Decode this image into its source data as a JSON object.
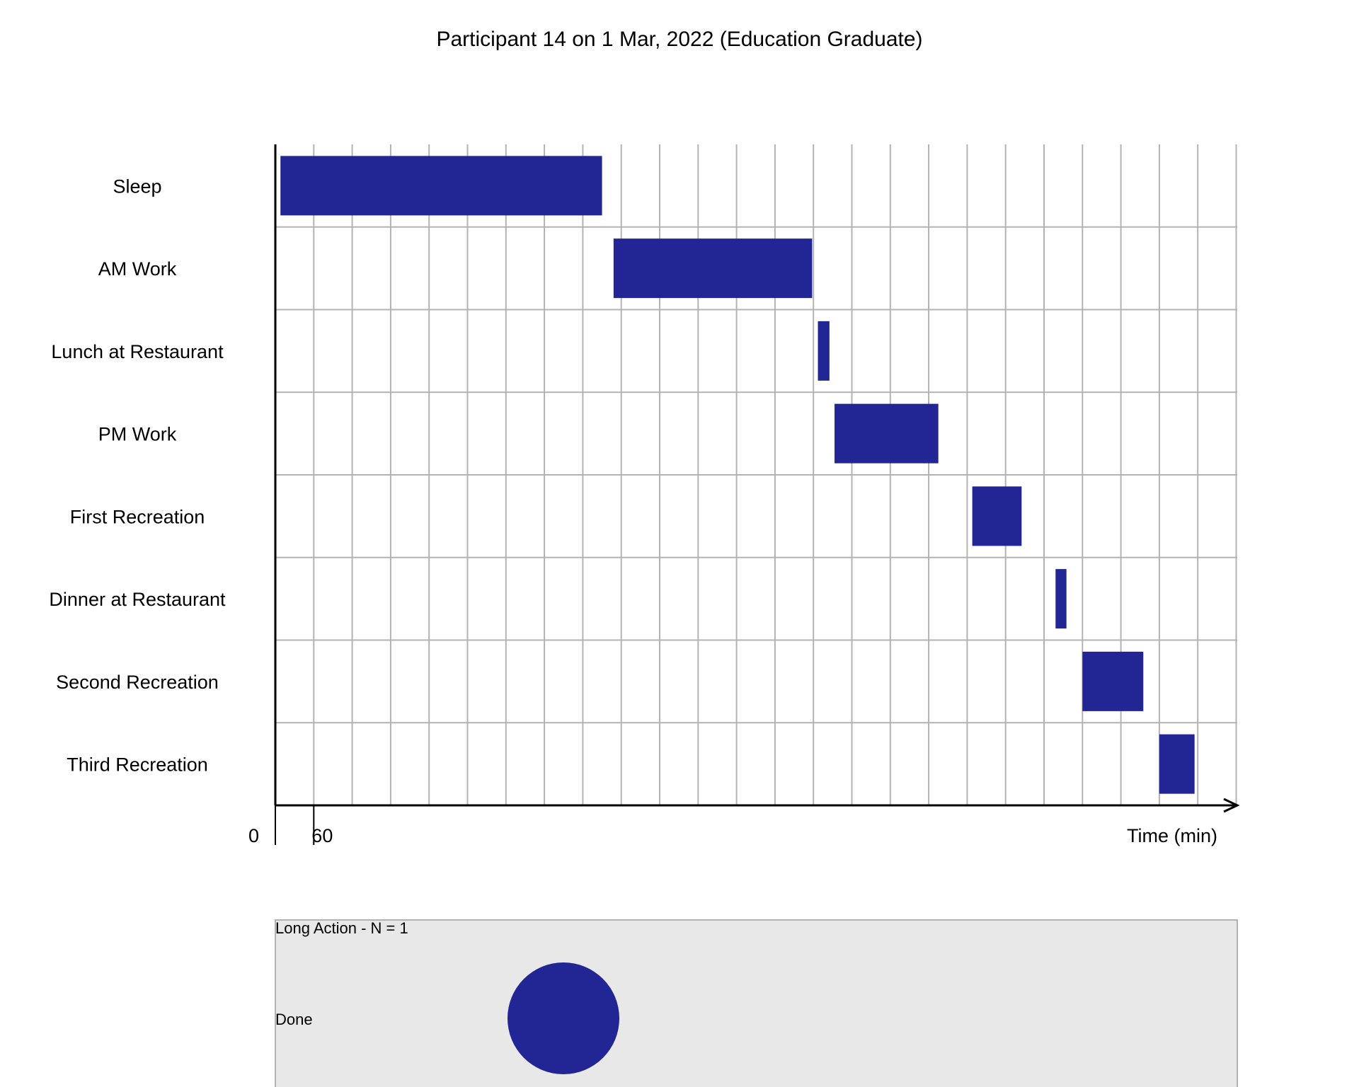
{
  "chart_data": {
    "type": "gantt",
    "title": "Participant 14 on 1 Mar, 2022 (Education Graduate)",
    "xlabel": "Time (min)",
    "x_range": [
      0,
      1500
    ],
    "x_ticks": [
      0,
      60
    ],
    "grid_interval_minutes": 60,
    "bar_color": "#222594",
    "tasks": [
      {
        "name": "Sleep",
        "start": 8,
        "end": 510
      },
      {
        "name": "AM Work",
        "start": 528,
        "end": 838
      },
      {
        "name": "Lunch at Restaurant",
        "start": 847,
        "end": 865
      },
      {
        "name": "PM Work",
        "start": 873,
        "end": 1035
      },
      {
        "name": "First Recreation",
        "start": 1088,
        "end": 1165
      },
      {
        "name": "Dinner at Restaurant",
        "start": 1218,
        "end": 1235
      },
      {
        "name": "Second Recreation",
        "start": 1260,
        "end": 1355
      },
      {
        "name": "Third Recreation",
        "start": 1380,
        "end": 1435
      }
    ],
    "legend": {
      "header": "Long Action  -  N =  1",
      "entries": [
        {
          "label": "Done",
          "color": "#222594"
        }
      ],
      "background": "#e8e8e9"
    }
  }
}
